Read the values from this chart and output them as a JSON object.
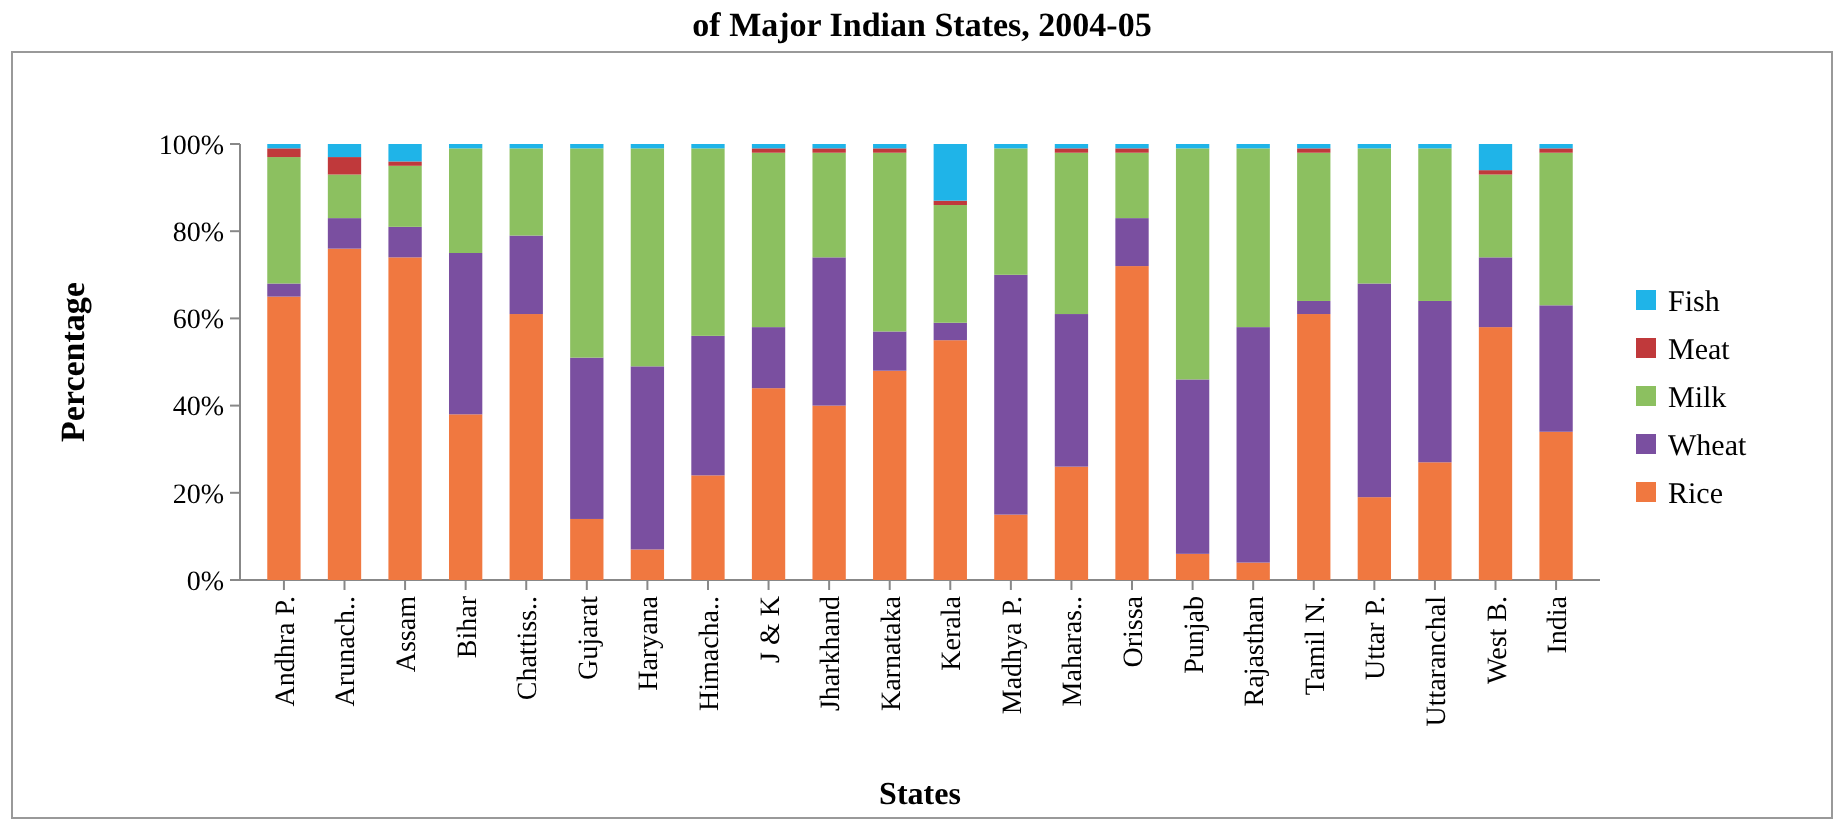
{
  "chart_data": {
    "type": "bar",
    "title": "of Major Indian States, 2004-05",
    "xlabel": "States",
    "ylabel": "Percentage",
    "stacked": true,
    "legend": "right",
    "grid": false,
    "categories": [
      "Andhra P.",
      "Arunach..",
      "Assam",
      "Bihar",
      "Chattiss..",
      "Gujarat",
      "Haryana",
      "Himacha..",
      "J & K",
      "Jharkhand",
      "Karnataka",
      "Kerala",
      "Madhya P.",
      "Maharas..",
      "Orissa",
      "Punjab",
      "Rajasthan",
      "Tamil N.",
      "Uttar P.",
      "Uttaranchal",
      "West B.",
      "India"
    ],
    "series": [
      {
        "name": "Rice",
        "color": "#f07840",
        "values": [
          65,
          76,
          74,
          38,
          61,
          14,
          7,
          24,
          44,
          40,
          48,
          55,
          15,
          26,
          72,
          6,
          4,
          61,
          19,
          27,
          58,
          34
        ]
      },
      {
        "name": "Wheat",
        "color": "#7a4fa0",
        "values": [
          3,
          7,
          7,
          37,
          18,
          37,
          42,
          32,
          14,
          34,
          9,
          4,
          55,
          35,
          11,
          40,
          54,
          3,
          49,
          37,
          16,
          29
        ]
      },
      {
        "name": "Milk",
        "color": "#8cc060",
        "values": [
          29,
          10,
          14,
          24,
          20,
          48,
          50,
          43,
          40,
          24,
          41,
          27,
          29,
          37,
          15,
          53,
          41,
          34,
          31,
          35,
          19,
          35
        ]
      },
      {
        "name": "Meat",
        "color": "#c0393b",
        "values": [
          2,
          4,
          1,
          0,
          0,
          0,
          0,
          0,
          1,
          1,
          1,
          1,
          0,
          1,
          1,
          0,
          0,
          1,
          0,
          0,
          1,
          1
        ]
      },
      {
        "name": "Fish",
        "color": "#1fb4e8",
        "values": [
          1,
          3,
          4,
          1,
          1,
          1,
          1,
          1,
          1,
          1,
          1,
          13,
          1,
          1,
          1,
          1,
          1,
          1,
          1,
          1,
          6,
          1
        ]
      }
    ],
    "ylim": [
      0,
      100
    ],
    "yticks": [
      {
        "value": 0,
        "label": "0%"
      },
      {
        "value": 20,
        "label": "20%"
      },
      {
        "value": 40,
        "label": "40%"
      },
      {
        "value": 60,
        "label": "60%"
      },
      {
        "value": 80,
        "label": "80%"
      },
      {
        "value": 100,
        "label": "100%"
      }
    ]
  }
}
